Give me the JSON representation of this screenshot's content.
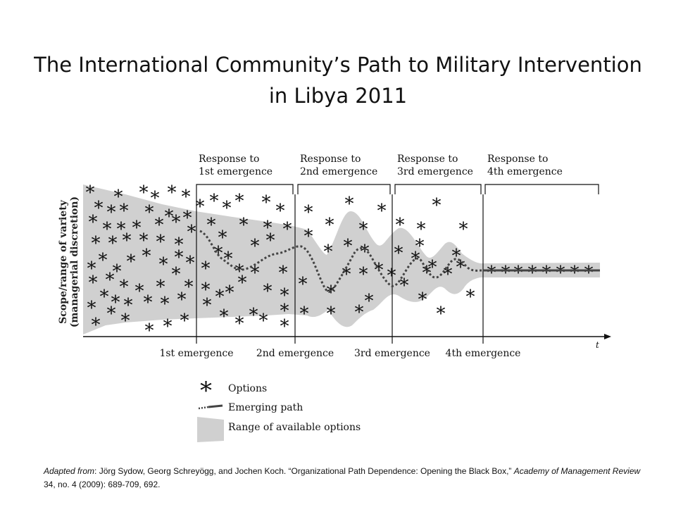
{
  "title": {
    "line1": "The International Community’s Path to Military Intervention",
    "line2": "in Libya 2011"
  },
  "diagram": {
    "y_axis_label_line1": "Scope/range of variety",
    "y_axis_label_line2": "(managerial discretion)",
    "x_axis_label": "t",
    "phase_brackets": [
      {
        "line1": "Response to",
        "line2": "1st emergence"
      },
      {
        "line1": "Response to",
        "line2": "2nd emergence"
      },
      {
        "line1": "Response to",
        "line2": "3rd emergence"
      },
      {
        "line1": "Response to",
        "line2": "4th emergence"
      }
    ],
    "emergence_labels": [
      "1st emergence",
      "2nd emergence",
      "3rd emergence",
      "4th emergence"
    ],
    "option_symbol": "*",
    "legend": {
      "options": "Options",
      "path": "Emerging path",
      "range": "Range of available options"
    },
    "colors": {
      "band": "#d0d0d0",
      "path": "#444444",
      "ink": "#111111"
    }
  },
  "citation": {
    "prefix": "Adapted from",
    "authors": ": Jörg Sydow, Georg Schreyögg, and Jochen Koch. “Organizational Path Dependence: Opening the Black Box,” ",
    "journal": "Academy of Management Review",
    "details": " 34, no. 4 (2009): 689-709, 692."
  }
}
